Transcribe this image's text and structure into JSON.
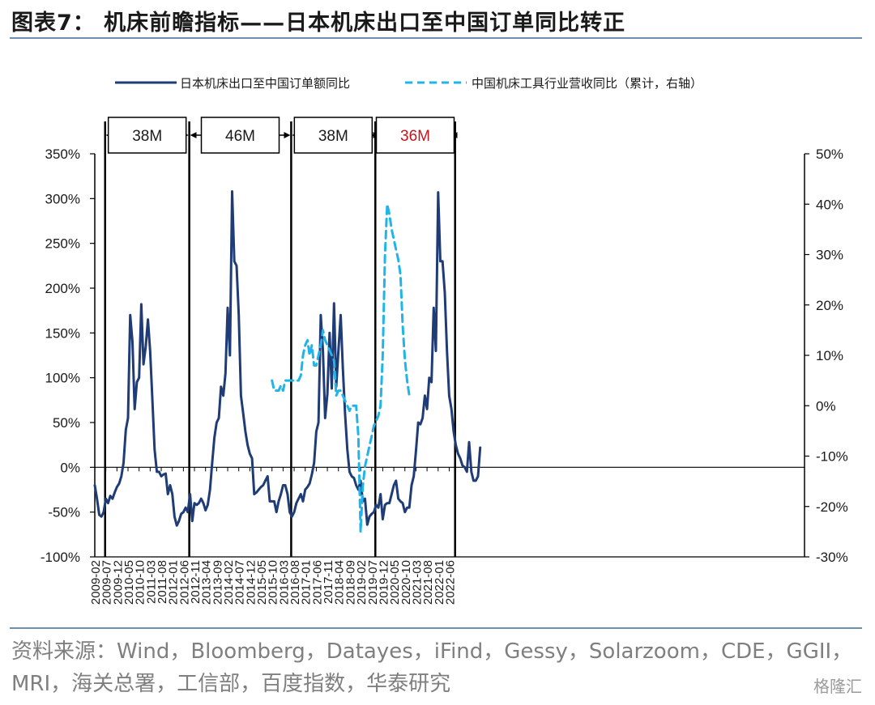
{
  "title": "图表7：  机床前瞻指标——日本机床出口至中国订单同比转正",
  "source": "资料来源：Wind，Bloomberg，Datayes，iFind，Gessy，Solarzoom，CDE，GGII，MRI，海关总署，工信部，百度指数，华泰研究",
  "watermark": "格隆汇",
  "chart_data": {
    "type": "line",
    "x_tick_labels": [
      "2009-02",
      "2009-07",
      "2009-12",
      "2010-05",
      "2010-10",
      "2011-03",
      "2011-08",
      "2012-01",
      "2012-06",
      "2012-11",
      "2013-04",
      "2013-09",
      "2014-02",
      "2014-07",
      "2014-12",
      "2015-05",
      "2015-10",
      "2016-03",
      "2016-08",
      "2017-01",
      "2017-06",
      "2017-11",
      "2018-04",
      "2018-09",
      "2019-02",
      "2019-07",
      "2019-12",
      "2020-05",
      "2020-10",
      "2021-03",
      "2021-08",
      "2022-01",
      "2022-06"
    ],
    "y_left": {
      "ticks": [
        "350%",
        "300%",
        "250%",
        "200%",
        "150%",
        "100%",
        "50%",
        "0%",
        "-50%",
        "-100%"
      ],
      "range": [
        -100,
        350
      ]
    },
    "y_right": {
      "ticks": [
        "50%",
        "40%",
        "30%",
        "20%",
        "10%",
        "0%",
        "-10%",
        "-20%",
        "-30%"
      ],
      "range": [
        -30,
        50
      ]
    },
    "legend": {
      "placement": "top",
      "items": [
        {
          "name": "日本机床出口至中国订单额同比",
          "style": "solid",
          "color": "#1f3c77"
        },
        {
          "name": "中国机床工具行业营收同比（累计，右轴）",
          "style": "dashed",
          "color": "#21b4e8"
        }
      ]
    },
    "cycle_markers": [
      "2009-03",
      "2012-05",
      "2016-03",
      "2019-05",
      "2022-05"
    ],
    "cycle_labels": [
      {
        "text": "38M",
        "color": "#1a1a1a"
      },
      {
        "text": "46M",
        "color": "#1a1a1a"
      },
      {
        "text": "38M",
        "color": "#1a1a1a"
      },
      {
        "text": "36M",
        "color": "#c0171f"
      }
    ],
    "series": [
      {
        "name": "日本机床出口至中国订单额同比",
        "axis": "left",
        "color": "#1f3c77",
        "start": "2009-02",
        "values": [
          -20,
          -35,
          -53,
          -55,
          -50,
          -35,
          -40,
          -32,
          -35,
          -28,
          -22,
          -18,
          -10,
          5,
          42,
          55,
          170,
          140,
          65,
          95,
          100,
          182,
          115,
          135,
          165,
          130,
          75,
          20,
          -5,
          -5,
          -10,
          -8,
          -7,
          -30,
          -20,
          -30,
          -55,
          -65,
          -60,
          -52,
          -50,
          -45,
          -50,
          -30,
          -60,
          -40,
          -42,
          -40,
          -35,
          -40,
          -48,
          -42,
          -25,
          5,
          33,
          50,
          55,
          90,
          80,
          105,
          178,
          125,
          308,
          230,
          225,
          170,
          80,
          60,
          40,
          25,
          15,
          10,
          -30,
          -28,
          -25,
          -22,
          -20,
          -15,
          -10,
          -38,
          -38,
          -38,
          -50,
          -38,
          -30,
          -20,
          -20,
          -30,
          -50,
          -55,
          -50,
          -40,
          -35,
          -30,
          -38,
          -25,
          -22,
          -18,
          -8,
          5,
          40,
          50,
          170,
          130,
          55,
          82,
          150,
          88,
          183,
          90,
          130,
          170,
          110,
          60,
          20,
          -5,
          -10,
          -12,
          -20,
          -25,
          -15,
          -38,
          -35,
          -64,
          -55,
          -52,
          -50,
          -42,
          -45,
          -30,
          -58,
          -42,
          -40,
          -40,
          -30,
          -20,
          -15,
          -35,
          -38,
          -40,
          -50,
          -45,
          -45,
          -20,
          -10,
          18,
          50,
          48,
          55,
          80,
          65,
          100,
          95,
          178,
          130,
          307,
          230,
          230,
          195,
          130,
          80,
          65,
          40,
          25,
          15,
          10,
          2,
          0,
          -5,
          28,
          -5,
          -15,
          -15,
          -10,
          22
        ]
      },
      {
        "name": "中国机床工具行业营收同比（累计，右轴）",
        "axis": "right",
        "color": "#21b4e8",
        "start": "2015-10",
        "values": [
          5,
          3,
          3,
          3,
          4,
          3,
          5,
          5,
          5,
          5,
          5,
          5,
          5,
          6,
          10,
          12,
          13,
          10,
          12,
          8,
          8,
          10,
          12,
          15,
          13,
          12,
          11,
          10,
          9,
          2,
          3,
          3,
          2,
          1,
          0,
          -1,
          0,
          0,
          0,
          -6,
          -25,
          -16,
          -12,
          -10,
          -8,
          -6,
          -4,
          -3,
          -2,
          0,
          10,
          30,
          40,
          38,
          35,
          33,
          31,
          29,
          26,
          16,
          9,
          5,
          2
        ]
      }
    ]
  }
}
